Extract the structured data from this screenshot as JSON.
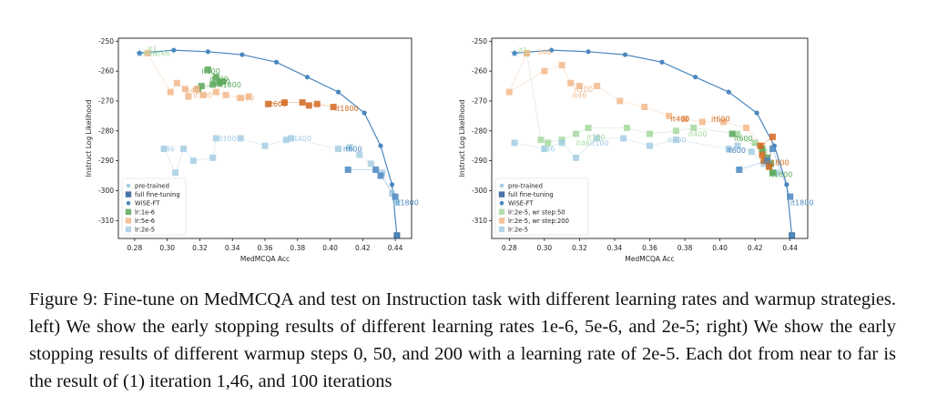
{
  "chart_data": [
    {
      "type": "scatter",
      "title": "",
      "xlabel": "MedMCQA Acc",
      "ylabel": "Instruct Log Likelihood",
      "xlim": [
        0.27,
        0.45
      ],
      "ylim": [
        -316,
        -249
      ],
      "xticks": [
        0.28,
        0.3,
        0.32,
        0.34,
        0.36,
        0.38,
        0.4,
        0.42,
        0.44
      ],
      "yticks": [
        -250,
        -260,
        -270,
        -280,
        -290,
        -300,
        -310
      ],
      "legend_position": "bottom-left",
      "legend": [
        "pre-trained",
        "full fine-tuning",
        "WiSE-FT",
        "lr:1e-6",
        "lr:5e-6",
        "lr:2e-5"
      ],
      "series": [
        {
          "name": "pre-trained",
          "color": "#a6cee3",
          "marker": "star",
          "points": [
            [
              0.283,
              -254
            ]
          ]
        },
        {
          "name": "full fine-tuning",
          "color": "#2a5d97",
          "marker": "square",
          "points": [
            [
              0.441,
              -315
            ]
          ]
        },
        {
          "name": "WiSE-FT",
          "color": "#4a87bf",
          "marker": "circle",
          "line": true,
          "points": [
            [
              0.283,
              -254
            ],
            [
              0.304,
              -253
            ],
            [
              0.325,
              -253.5
            ],
            [
              0.346,
              -254.5
            ],
            [
              0.367,
              -257
            ],
            [
              0.386,
              -262
            ],
            [
              0.405,
              -267
            ],
            [
              0.421,
              -274
            ],
            [
              0.431,
              -285
            ],
            [
              0.438,
              -298
            ],
            [
              0.441,
              -315
            ]
          ]
        },
        {
          "name": "lr:1e-6",
          "color": "#5aa75a",
          "marker": "square",
          "points": [
            [
              0.325,
              -259.5
            ],
            [
              0.33,
              -262
            ],
            [
              0.334,
              -263.5
            ],
            [
              0.328,
              -264.5
            ],
            [
              0.321,
              -265
            ],
            [
              0.319,
              -266
            ],
            [
              0.332,
              -264
            ]
          ]
        },
        {
          "name": "lr:5e-6",
          "color": "#f2b98c",
          "marker": "square",
          "points": [
            [
              0.288,
              -254
            ],
            [
              0.302,
              -267
            ],
            [
              0.306,
              -264
            ],
            [
              0.311,
              -266
            ],
            [
              0.313,
              -268.5
            ],
            [
              0.318,
              -266
            ],
            [
              0.322,
              -268
            ],
            [
              0.33,
              -267
            ],
            [
              0.336,
              -268
            ],
            [
              0.345,
              -269
            ],
            [
              0.35,
              -268.5
            ]
          ]
        },
        {
          "name": "lr:2e-5",
          "color": "#a6cee3",
          "marker": "square",
          "points": [
            [
              0.298,
              -286
            ],
            [
              0.305,
              -294
            ],
            [
              0.31,
              -286
            ],
            [
              0.316,
              -290
            ],
            [
              0.328,
              -289
            ],
            [
              0.33,
              -282.5
            ],
            [
              0.345,
              -282.5
            ],
            [
              0.36,
              -285
            ],
            [
              0.373,
              -283
            ],
            [
              0.376,
              -282.5
            ],
            [
              0.405,
              -286
            ],
            [
              0.412,
              -285.5
            ],
            [
              0.418,
              -288
            ],
            [
              0.425,
              -291
            ],
            [
              0.432,
              -294
            ],
            [
              0.438,
              -301
            ],
            [
              0.441,
              -304
            ]
          ]
        },
        {
          "name": "",
          "color": "#d2691e",
          "marker": "square",
          "points": [
            [
              0.362,
              -271
            ],
            [
              0.372,
              -270.5
            ],
            [
              0.383,
              -270.5
            ],
            [
              0.387,
              -271.5
            ],
            [
              0.392,
              -271
            ],
            [
              0.402,
              -272
            ]
          ]
        },
        {
          "name": "",
          "color": "#4a87bf",
          "marker": "square",
          "points": [
            [
              0.411,
              -293
            ],
            [
              0.428,
              -293
            ],
            [
              0.431,
              -295
            ],
            [
              0.44,
              -302
            ]
          ]
        }
      ],
      "annotations": [
        {
          "text": "it1",
          "x": 0.288,
          "y": -252.5,
          "color": "#a6d9a0"
        },
        {
          "text": "it46",
          "x": 0.285,
          "y": -254,
          "color": "#a6d9a0"
        },
        {
          "text": "it46",
          "x": 0.293,
          "y": -254,
          "color": "#a6d9a0"
        },
        {
          "text": "it100",
          "x": 0.321,
          "y": -260,
          "color": "#5aa75a"
        },
        {
          "text": "it100",
          "x": 0.326,
          "y": -262.5,
          "color": "#5aa75a"
        },
        {
          "text": "it400",
          "x": 0.327,
          "y": -263.5,
          "color": "#5aa75a"
        },
        {
          "text": "it1800",
          "x": 0.331,
          "y": -264.5,
          "color": "#5aa75a"
        },
        {
          "text": "it46",
          "x": 0.311,
          "y": -266.5,
          "color": "#f2b98c"
        },
        {
          "text": "it100",
          "x": 0.316,
          "y": -268,
          "color": "#f2b98c"
        },
        {
          "text": "it400",
          "x": 0.342,
          "y": -269,
          "color": "#f2b98c"
        },
        {
          "text": "it600",
          "x": 0.362,
          "y": -271,
          "color": "#d2691e"
        },
        {
          "text": "it1800",
          "x": 0.403,
          "y": -272.5,
          "color": "#d2691e"
        },
        {
          "text": "it46",
          "x": 0.296,
          "y": -286,
          "color": "#a6cee3"
        },
        {
          "text": "it100",
          "x": 0.331,
          "y": -282.5,
          "color": "#a6cee3"
        },
        {
          "text": "it400",
          "x": 0.377,
          "y": -282.5,
          "color": "#a6cee3"
        },
        {
          "text": "it600",
          "x": 0.408,
          "y": -286,
          "color": "#4a87bf"
        },
        {
          "text": "it1800",
          "x": 0.44,
          "y": -304,
          "color": "#4a87bf"
        }
      ]
    },
    {
      "type": "scatter",
      "title": "",
      "xlabel": "MedMCQA Acc",
      "ylabel": "Instruct Log Likelihood",
      "xlim": [
        0.27,
        0.45
      ],
      "ylim": [
        -316,
        -249
      ],
      "xticks": [
        0.28,
        0.3,
        0.32,
        0.34,
        0.36,
        0.38,
        0.4,
        0.42,
        0.44
      ],
      "yticks": [
        -250,
        -260,
        -270,
        -280,
        -290,
        -300,
        -310
      ],
      "legend_position": "bottom-left",
      "legend": [
        "pre-trained",
        "full fine-tuning",
        "WiSE-FT",
        "lr:2e-5, wr step:50",
        "lr:2e-5, wr step:200",
        "lr:2e-5"
      ],
      "series": [
        {
          "name": "pre-trained",
          "color": "#a6cee3",
          "marker": "star",
          "points": [
            [
              0.283,
              -254
            ]
          ]
        },
        {
          "name": "full fine-tuning",
          "color": "#2a5d97",
          "marker": "square",
          "points": [
            [
              0.441,
              -315
            ]
          ]
        },
        {
          "name": "WiSE-FT",
          "color": "#4a87bf",
          "marker": "circle",
          "line": true,
          "points": [
            [
              0.283,
              -254
            ],
            [
              0.304,
              -253
            ],
            [
              0.325,
              -253.5
            ],
            [
              0.346,
              -254.5
            ],
            [
              0.367,
              -257
            ],
            [
              0.386,
              -262
            ],
            [
              0.405,
              -267
            ],
            [
              0.421,
              -274
            ],
            [
              0.431,
              -285
            ],
            [
              0.438,
              -298
            ],
            [
              0.441,
              -315
            ]
          ]
        },
        {
          "name": "lr:2e-5, wr step:50",
          "color": "#a6d9a0",
          "marker": "square",
          "points": [
            [
              0.29,
              -254
            ],
            [
              0.298,
              -283
            ],
            [
              0.302,
              -284
            ],
            [
              0.31,
              -283
            ],
            [
              0.318,
              -281
            ],
            [
              0.325,
              -279
            ],
            [
              0.347,
              -279
            ],
            [
              0.36,
              -281
            ],
            [
              0.375,
              -280
            ],
            [
              0.385,
              -279
            ],
            [
              0.41,
              -281
            ],
            [
              0.42,
              -284
            ],
            [
              0.425,
              -287
            ],
            [
              0.428,
              -292
            ],
            [
              0.43,
              -294
            ]
          ]
        },
        {
          "name": "lr:2e-5, wr step:200",
          "color": "#f2b98c",
          "marker": "square",
          "points": [
            [
              0.29,
              -254
            ],
            [
              0.28,
              -267
            ],
            [
              0.3,
              -260
            ],
            [
              0.31,
              -258
            ],
            [
              0.315,
              -264
            ],
            [
              0.32,
              -265
            ],
            [
              0.33,
              -265
            ],
            [
              0.343,
              -270
            ],
            [
              0.357,
              -272
            ],
            [
              0.371,
              -275
            ],
            [
              0.38,
              -276
            ],
            [
              0.39,
              -277
            ],
            [
              0.402,
              -277
            ],
            [
              0.415,
              -279
            ],
            [
              0.424,
              -285
            ]
          ]
        },
        {
          "name": "lr:2e-5",
          "color": "#a6cee3",
          "marker": "square",
          "points": [
            [
              0.283,
              -284
            ],
            [
              0.3,
              -286
            ],
            [
              0.31,
              -284
            ],
            [
              0.318,
              -289
            ],
            [
              0.33,
              -282.5
            ],
            [
              0.345,
              -282.5
            ],
            [
              0.36,
              -285
            ],
            [
              0.375,
              -283
            ],
            [
              0.405,
              -286
            ],
            [
              0.41,
              -285
            ],
            [
              0.418,
              -287
            ],
            [
              0.425,
              -291
            ],
            [
              0.432,
              -294
            ]
          ]
        },
        {
          "name": "",
          "color": "#5aa75a",
          "marker": "square",
          "points": [
            [
              0.407,
              -281
            ],
            [
              0.424,
              -286
            ],
            [
              0.427,
              -289
            ],
            [
              0.429,
              -291
            ],
            [
              0.43,
              -294
            ]
          ]
        },
        {
          "name": "",
          "color": "#d2691e",
          "marker": "square",
          "points": [
            [
              0.424,
              -288
            ],
            [
              0.425,
              -290
            ],
            [
              0.428,
              -292
            ],
            [
              0.43,
              -282
            ],
            [
              0.423,
              -285
            ]
          ]
        },
        {
          "name": "",
          "color": "#4a87bf",
          "marker": "square",
          "points": [
            [
              0.411,
              -293
            ],
            [
              0.427,
              -290
            ],
            [
              0.43,
              -286
            ],
            [
              0.44,
              -302
            ]
          ]
        }
      ],
      "annotations": [
        {
          "text": "it1",
          "x": 0.285,
          "y": -253,
          "color": "#a6d9a0"
        },
        {
          "text": "it46",
          "x": 0.296,
          "y": -253.5,
          "color": "#f2b98c"
        },
        {
          "text": "it100",
          "x": 0.317,
          "y": -266,
          "color": "#f2b98c"
        },
        {
          "text": "it46",
          "x": 0.316,
          "y": -268,
          "color": "#f2b98c"
        },
        {
          "text": "it100",
          "x": 0.324,
          "y": -282,
          "color": "#a6d9a0"
        },
        {
          "text": "it46",
          "x": 0.318,
          "y": -284,
          "color": "#a6d9a0"
        },
        {
          "text": "it100",
          "x": 0.326,
          "y": -284,
          "color": "#a6cee3"
        },
        {
          "text": "it46",
          "x": 0.298,
          "y": -286,
          "color": "#a6cee3"
        },
        {
          "text": "it400",
          "x": 0.372,
          "y": -276,
          "color": "#d2691e"
        },
        {
          "text": "it600",
          "x": 0.395,
          "y": -276,
          "color": "#d2691e"
        },
        {
          "text": "it400",
          "x": 0.382,
          "y": -281,
          "color": "#a6d9a0"
        },
        {
          "text": "it400",
          "x": 0.37,
          "y": -283,
          "color": "#a6cee3"
        },
        {
          "text": "it600",
          "x": 0.408,
          "y": -282.5,
          "color": "#5aa75a"
        },
        {
          "text": "it600",
          "x": 0.404,
          "y": -286.5,
          "color": "#4a87bf"
        },
        {
          "text": "it1800",
          "x": 0.426,
          "y": -290.5,
          "color": "#d2691e"
        },
        {
          "text": "it1800",
          "x": 0.428,
          "y": -294.5,
          "color": "#5aa75a"
        },
        {
          "text": "it1800",
          "x": 0.44,
          "y": -304,
          "color": "#4a87bf"
        }
      ]
    }
  ],
  "caption": {
    "label": "Figure 9:",
    "text": "Fine-tune on MedMCQA and test on Instruction task with different learning rates and warmup strategies. left) We show the early stopping results of different learning rates 1e-6, 5e-6, and 2e-5; right) We show the early stopping results of different warmup steps 0, 50, and 200 with a learning rate of 2e-5. Each dot from near to far is the result of (1) iteration 1,46, and 100 iterations"
  }
}
